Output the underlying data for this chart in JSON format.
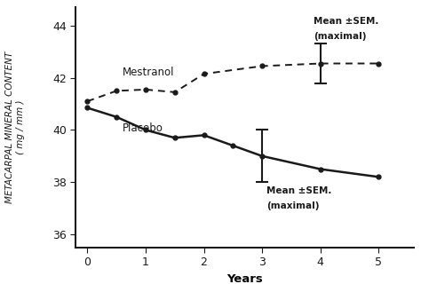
{
  "mestranol_x": [
    0,
    0.5,
    1.0,
    1.5,
    2.0,
    3.0,
    4.0,
    5.0
  ],
  "mestranol_y": [
    41.1,
    41.5,
    41.55,
    41.45,
    42.15,
    42.45,
    42.55,
    42.55
  ],
  "placebo_x": [
    0,
    0.5,
    1.0,
    1.5,
    2.0,
    2.5,
    3.0,
    4.0,
    5.0
  ],
  "placebo_y": [
    40.85,
    40.5,
    40.0,
    39.7,
    39.8,
    39.4,
    39.0,
    38.5,
    38.2
  ],
  "mestranol_err_x": 4.0,
  "mestranol_err_y": 42.55,
  "mestranol_err": 0.75,
  "placebo_err_x": 3.0,
  "placebo_err_y": 39.0,
  "placebo_err": 1.0,
  "ylim": [
    35.5,
    44.7
  ],
  "yticks": [
    36,
    38,
    40,
    42,
    44
  ],
  "xlim": [
    -0.2,
    5.6
  ],
  "xticks": [
    0,
    1,
    2,
    3,
    4,
    5
  ],
  "xlabel": "Years",
  "ylabel_top": "METACARPAL MINERAL CONTENT",
  "ylabel_bot": "( mg / mm )",
  "mestranol_label": "Mestranol",
  "placebo_label": "Placebo",
  "annot_mestranol_line1": "Mean ±SEM.",
  "annot_mestranol_line2": "(maximal)",
  "annot_placebo_line1": "Mean ±SEM.",
  "annot_placebo_line2": "(maximal)",
  "bg_color": "#ffffff",
  "line_color": "#1a1a1a"
}
